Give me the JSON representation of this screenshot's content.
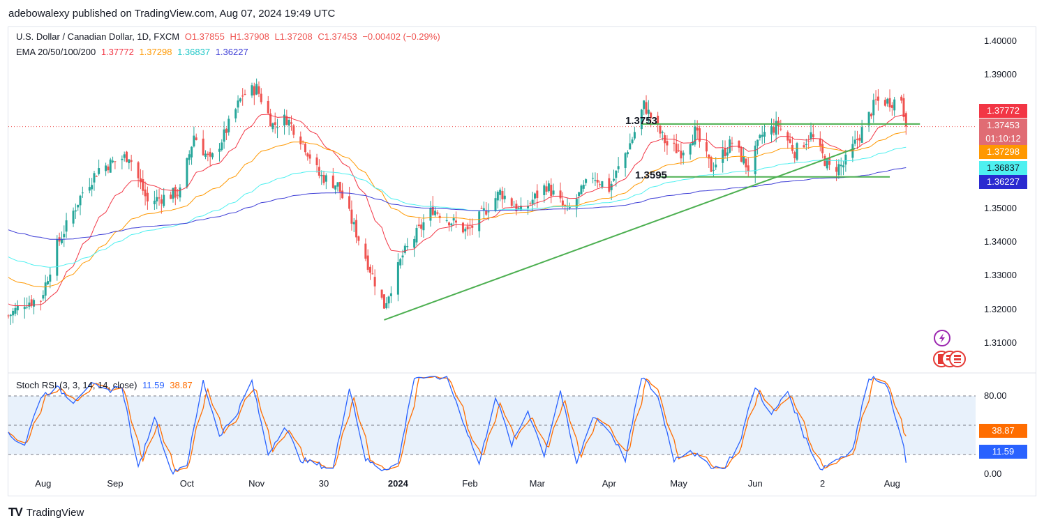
{
  "header": {
    "publisher": "adebowalexy published on TradingView.com, Aug 07, 2024 19:49 UTC"
  },
  "legend": {
    "symbol": "U.S. Dollar / Canadian Dollar, 1D, FXCM",
    "ohlc": [
      "O1.37855",
      "H1.37908",
      "L1.37208",
      "C1.37453",
      "−0.00402 (−0.29%)"
    ],
    "ema_label": "EMA 20/50/100/200",
    "ema_values": [
      "1.37772",
      "1.37298",
      "1.36837",
      "1.36227"
    ],
    "stoch_label": "Stoch RSI (3, 3, 14, 14, close)",
    "stoch_values": [
      "11.59",
      "38.87"
    ]
  },
  "price_labels": {
    "ema20": "1.37772",
    "last": "1.37453",
    "timer": "01:10:12",
    "ema50": "1.37298",
    "ema100": "1.36837",
    "ema200": "1.36227"
  },
  "stoch_labels": {
    "d": "38.87",
    "k": "11.59"
  },
  "annotations": {
    "level_high": "1.3753",
    "level_low": "1.3595"
  },
  "footer": {
    "brand": "TradingView",
    "logo": "TV"
  },
  "colors": {
    "up": "#26a69a",
    "down": "#ef5350",
    "ema20": "#f23645",
    "ema50": "#ff9800",
    "ema100": "#4ef0f0",
    "ema200": "#3d3dd6",
    "trend": "#4caf50",
    "stoch_k": "#2962ff",
    "stoch_d": "#ff6d00"
  },
  "chart_data": [
    {
      "type": "candlestick",
      "title": "U.S. Dollar / Canadian Dollar, 1D, FXCM",
      "ylim": [
        1.302,
        1.404
      ],
      "y_ticks": [
        "1.40000",
        "1.39000",
        "1.38000",
        "1.37000",
        "1.36000",
        "1.35000",
        "1.34000",
        "1.33000",
        "1.32000",
        "1.31000"
      ],
      "y_tick_values": [
        1.4,
        1.39,
        1.38,
        1.37,
        1.36,
        1.35,
        1.34,
        1.33,
        1.32,
        1.31
      ],
      "x_ticks": [
        "Aug",
        "Sep",
        "Oct",
        "Nov",
        "30",
        "2024",
        "Feb",
        "Mar",
        "Apr",
        "May",
        "Jun",
        "2",
        "Aug"
      ],
      "x_tick_dates": [
        "2023-08-01",
        "2023-09-01",
        "2023-10-02",
        "2023-11-01",
        "2023-11-30",
        "2024-01-01",
        "2024-02-01",
        "2024-03-01",
        "2024-04-01",
        "2024-05-01",
        "2024-06-03",
        "2024-07-02",
        "2024-08-01"
      ],
      "x_range": [
        "2023-07-17",
        "2024-09-06"
      ],
      "last_date": "2024-08-07",
      "price_anchors": [
        [
          "2023-07-17",
          1.318
        ],
        [
          "2023-07-24",
          1.322
        ],
        [
          "2023-07-31",
          1.323
        ],
        [
          "2023-08-07",
          1.339
        ],
        [
          "2023-08-18",
          1.355
        ],
        [
          "2023-08-25",
          1.362
        ],
        [
          "2023-09-07",
          1.366
        ],
        [
          "2023-09-15",
          1.352
        ],
        [
          "2023-09-29",
          1.355
        ],
        [
          "2023-10-05",
          1.372
        ],
        [
          "2023-10-12",
          1.364
        ],
        [
          "2023-10-18",
          1.372
        ],
        [
          "2023-10-26",
          1.384
        ],
        [
          "2023-11-01",
          1.386
        ],
        [
          "2023-11-08",
          1.375
        ],
        [
          "2023-11-14",
          1.377
        ],
        [
          "2023-11-21",
          1.37
        ],
        [
          "2023-11-28",
          1.36
        ],
        [
          "2023-12-06",
          1.357
        ],
        [
          "2023-12-15",
          1.341
        ],
        [
          "2023-12-26",
          1.321
        ],
        [
          "2024-01-03",
          1.336
        ],
        [
          "2024-01-16",
          1.35
        ],
        [
          "2024-01-31",
          1.343
        ],
        [
          "2024-02-14",
          1.355
        ],
        [
          "2024-02-23",
          1.349
        ],
        [
          "2024-03-05",
          1.357
        ],
        [
          "2024-03-14",
          1.349
        ],
        [
          "2024-03-25",
          1.36
        ],
        [
          "2024-04-01",
          1.356
        ],
        [
          "2024-04-11",
          1.371
        ],
        [
          "2024-04-16",
          1.381
        ],
        [
          "2024-04-26",
          1.369
        ],
        [
          "2024-05-02",
          1.367
        ],
        [
          "2024-05-08",
          1.373
        ],
        [
          "2024-05-15",
          1.362
        ],
        [
          "2024-05-24",
          1.37
        ],
        [
          "2024-05-31",
          1.362
        ],
        [
          "2024-06-06",
          1.372
        ],
        [
          "2024-06-13",
          1.375
        ],
        [
          "2024-06-20",
          1.367
        ],
        [
          "2024-06-27",
          1.372
        ],
        [
          "2024-07-05",
          1.362
        ],
        [
          "2024-07-11",
          1.363
        ],
        [
          "2024-07-18",
          1.372
        ],
        [
          "2024-07-25",
          1.382
        ],
        [
          "2024-08-01",
          1.382
        ],
        [
          "2024-08-05",
          1.383
        ],
        [
          "2024-08-07",
          1.3745
        ]
      ],
      "last_candle": {
        "open": 1.37855,
        "high": 1.37908,
        "low": 1.37208,
        "close": 1.37453
      },
      "ema": [
        {
          "name": "EMA 20",
          "last": 1.37772
        },
        {
          "name": "EMA 50",
          "last": 1.37298
        },
        {
          "name": "EMA 100",
          "last": 1.36837
        },
        {
          "name": "EMA 200",
          "last": 1.36227
        }
      ],
      "horizontal_levels": [
        {
          "label": "1.3753",
          "value": 1.3753,
          "from": "2024-04-15",
          "to": "2024-08-13"
        },
        {
          "label": "1.3595",
          "value": 1.3595,
          "from": "2024-04-23",
          "to": "2024-07-31"
        }
      ],
      "trendline": {
        "from": [
          "2023-12-26",
          1.3168
        ],
        "to": [
          "2024-07-16",
          1.368
        ]
      }
    },
    {
      "type": "line",
      "title": "Stoch RSI (3, 3, 14, 14, close)",
      "ylim": [
        0,
        100
      ],
      "y_ticks": [
        "80.00",
        "0.00"
      ],
      "band": [
        20,
        80
      ],
      "series": [
        {
          "name": "K",
          "last": 11.59
        },
        {
          "name": "D",
          "last": 38.87
        }
      ],
      "k_anchors": [
        [
          "2023-07-17",
          40
        ],
        [
          "2023-07-24",
          30
        ],
        [
          "2023-07-31",
          80
        ],
        [
          "2023-08-07",
          88
        ],
        [
          "2023-08-14",
          75
        ],
        [
          "2023-08-21",
          92
        ],
        [
          "2023-08-28",
          85
        ],
        [
          "2023-09-04",
          90
        ],
        [
          "2023-09-11",
          5
        ],
        [
          "2023-09-18",
          60
        ],
        [
          "2023-09-25",
          2
        ],
        [
          "2023-10-02",
          10
        ],
        [
          "2023-10-09",
          95
        ],
        [
          "2023-10-16",
          40
        ],
        [
          "2023-10-23",
          60
        ],
        [
          "2023-10-30",
          95
        ],
        [
          "2023-11-06",
          20
        ],
        [
          "2023-11-13",
          50
        ],
        [
          "2023-11-20",
          15
        ],
        [
          "2023-11-27",
          10
        ],
        [
          "2023-12-04",
          5
        ],
        [
          "2023-12-11",
          90
        ],
        [
          "2023-12-18",
          15
        ],
        [
          "2023-12-25",
          5
        ],
        [
          "2024-01-01",
          10
        ],
        [
          "2024-01-08",
          100
        ],
        [
          "2024-01-15",
          98
        ],
        [
          "2024-01-22",
          100
        ],
        [
          "2024-01-29",
          55
        ],
        [
          "2024-02-05",
          10
        ],
        [
          "2024-02-12",
          80
        ],
        [
          "2024-02-19",
          30
        ],
        [
          "2024-02-26",
          65
        ],
        [
          "2024-03-04",
          20
        ],
        [
          "2024-03-11",
          85
        ],
        [
          "2024-03-18",
          10
        ],
        [
          "2024-03-25",
          60
        ],
        [
          "2024-04-01",
          45
        ],
        [
          "2024-04-08",
          15
        ],
        [
          "2024-04-15",
          100
        ],
        [
          "2024-04-22",
          80
        ],
        [
          "2024-04-29",
          15
        ],
        [
          "2024-05-06",
          25
        ],
        [
          "2024-05-13",
          10
        ],
        [
          "2024-05-20",
          5
        ],
        [
          "2024-05-27",
          30
        ],
        [
          "2024-06-03",
          90
        ],
        [
          "2024-06-10",
          60
        ],
        [
          "2024-06-17",
          85
        ],
        [
          "2024-06-24",
          40
        ],
        [
          "2024-07-01",
          5
        ],
        [
          "2024-07-08",
          15
        ],
        [
          "2024-07-15",
          25
        ],
        [
          "2024-07-22",
          100
        ],
        [
          "2024-07-29",
          95
        ],
        [
          "2024-08-05",
          40
        ],
        [
          "2024-08-07",
          11.59
        ]
      ]
    }
  ]
}
